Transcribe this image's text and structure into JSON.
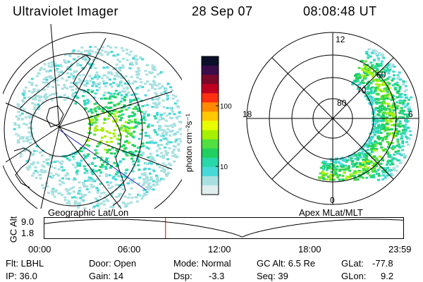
{
  "header": {
    "instrument": "Ultraviolet Imager",
    "date": "28 Sep 07",
    "time": "08:08:48 UT"
  },
  "geo_panel": {
    "caption": "Geographic Lat/Lon"
  },
  "colorbar": {
    "axis_label": "photon cm⁻²s⁻¹",
    "ticks": [
      "100",
      "10"
    ],
    "scale": "log",
    "colors_top_to_bottom": [
      "#0a0f2a",
      "#3a0d4a",
      "#7a0a2a",
      "#c00020",
      "#ff3010",
      "#ff8a00",
      "#ffc800",
      "#e8ff00",
      "#a6f000",
      "#50e040",
      "#20d060",
      "#28d8a8",
      "#48d8d8",
      "#a8e0e0",
      "#e0eeee"
    ]
  },
  "mag_panel": {
    "caption": "Apex MLat/MLT",
    "mlt_labels": {
      "top": "12",
      "left": "18",
      "right": "6",
      "bottom": "0"
    },
    "lat_labels": [
      "80",
      "70",
      "60"
    ]
  },
  "timeline": {
    "ylabel": "GC Alt",
    "ytick_top": "9.0",
    "ytick_bottom": "1.8",
    "xticks": [
      "00:00",
      "06:00",
      "12:00",
      "18:00",
      "23:59"
    ],
    "marker_time": "08:08",
    "marker_color": "#cc0000"
  },
  "info": {
    "flt": "Flt: LBHL",
    "ip": "IP: 36.0",
    "door": "Door: Open",
    "gain": "Gain: 14",
    "mode": "Mode: Normal",
    "dsp_label": "Dsp:",
    "dsp_value": "-3.3",
    "gcalt": "GC Alt: 6.5 Re",
    "seq": "Seq: 39",
    "glat_label": "GLat:",
    "glat_value": "-77.8",
    "glon_label": "GLon:",
    "glon_value": "9.2"
  }
}
